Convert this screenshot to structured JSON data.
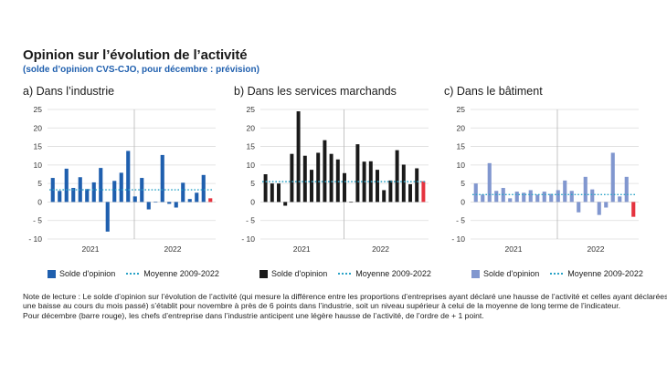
{
  "title": "Opinion sur l’évolution de l’activité",
  "subtitle": "(solde d’opinion CVS-CJO, pour décembre : prévision)",
  "colors": {
    "industry_bar": "#1f5fae",
    "services_bar": "#1a1a1a",
    "building_bar": "#8197cf",
    "forecast_bar": "#e5333f",
    "average_line": "#2ba3c7",
    "grid": "#dcdcdc"
  },
  "chart_data": [
    {
      "type": "bar",
      "panel_label": "a)  Dans l’industrie",
      "ylim": [
        -10,
        25
      ],
      "yticks": [
        25,
        20,
        15,
        10,
        5,
        0,
        -5,
        -10
      ],
      "ytick_labels": [
        "25",
        "20",
        "15",
        "10",
        "5",
        "0",
        "- 5",
        "- 10"
      ],
      "year_labels": [
        "2021",
        "2022"
      ],
      "values": [
        6.5,
        3,
        9,
        3.8,
        6.7,
        3.5,
        5.3,
        9.2,
        -8,
        5.7,
        7.9,
        13.8,
        1.5,
        6.5,
        -2,
        0,
        12.7,
        -0.5,
        -1.5,
        5.2,
        0.8,
        2.5,
        7.3,
        1
      ],
      "forecast_last": true,
      "average": 3.3,
      "legend": {
        "bars": "Solde d'opinion",
        "line": "Moyenne 2009-2022"
      }
    },
    {
      "type": "bar",
      "panel_label": "b)  Dans les services marchands",
      "ylim": [
        -10,
        25
      ],
      "yticks": [
        25,
        20,
        15,
        10,
        5,
        0,
        -5,
        -10
      ],
      "ytick_labels": [
        "25",
        "20",
        "15",
        "10",
        "5",
        "0",
        "- 5",
        "- 10"
      ],
      "year_labels": [
        "2021",
        "2022"
      ],
      "values": [
        7.5,
        5,
        5,
        -1,
        13,
        24.5,
        12.5,
        8.7,
        13.3,
        16.7,
        13,
        11.5,
        7.8,
        0,
        15.6,
        10.9,
        11,
        8.7,
        3.2,
        5.8,
        14,
        10.1,
        4.8,
        9.1,
        5.6
      ],
      "forecast_last": true,
      "average": 5.5,
      "legend": {
        "bars": "Solde d'opinion",
        "line": "Moyenne 2009-2022"
      }
    },
    {
      "type": "bar",
      "panel_label": "c)  Dans le bâtiment",
      "ylim": [
        -10,
        25
      ],
      "yticks": [
        25,
        20,
        15,
        10,
        5,
        0,
        -5,
        -10
      ],
      "ytick_labels": [
        "25",
        "20",
        "15",
        "10",
        "5",
        "0",
        "- 5",
        "- 10"
      ],
      "year_labels": [
        "2021",
        "2022"
      ],
      "values": [
        5,
        2,
        10.5,
        3,
        3.8,
        1,
        2.8,
        2.5,
        3.2,
        2,
        2.8,
        2.2,
        3.2,
        5.8,
        3,
        -2.8,
        6.8,
        3.4,
        -3.5,
        -1.5,
        13.3,
        1.5,
        6.8,
        -4
      ],
      "forecast_last": true,
      "average": 2,
      "legend": {
        "bars": "Solde d'opinion",
        "line": "Moyenne 2009-2022"
      }
    }
  ],
  "note": [
    "Note de lecture : Le solde d’opinion sur l’évolution de l’activité (qui mesure la différence entre les proportions d’entreprises ayant déclaré une hausse de l’activité et celles ayant déclarées",
    "une baisse au cours du mois passé) s’établit pour novembre à près de 6 points dans l’industrie, soit un niveau supérieur à celui de la moyenne de long terme de l’indicateur.",
    "Pour décembre (barre rouge), les chefs d’entreprise dans l’industrie anticipent une légère hausse de l’activité, de l’ordre de + 1 point."
  ]
}
